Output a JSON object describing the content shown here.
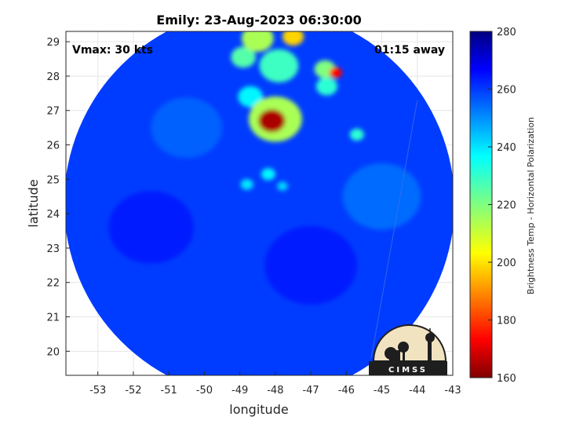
{
  "chart_data": {
    "type": "heatmap",
    "title": "Emily: 23-Aug-2023 06:30:00",
    "xlabel": "longitude",
    "ylabel": "latitude",
    "xlim": [
      -53.9,
      -43.0
    ],
    "ylim": [
      19.3,
      29.3
    ],
    "xticks": [
      -53,
      -52,
      -51,
      -50,
      -49,
      -48,
      -47,
      -46,
      -45,
      -44,
      -43
    ],
    "yticks": [
      20,
      21,
      22,
      23,
      24,
      25,
      26,
      27,
      28,
      29
    ],
    "grid": true,
    "annotations": {
      "vmax": "Vmax: 30 kts",
      "away": "01:15 away"
    },
    "colorbar": {
      "label": "Brightness Temp - Horizontal Polarization",
      "min": 160,
      "max": 280,
      "ticks": [
        160,
        180,
        200,
        220,
        240,
        260,
        280
      ],
      "colormap": "jet"
    },
    "swath": {
      "center_lon": -48.45,
      "center_lat": 24.3,
      "radius_deg": 5.5
    },
    "background_tb": 258,
    "features": [
      {
        "lon": -48.1,
        "lat": 26.7,
        "tb": 165,
        "r": 0.38
      },
      {
        "lon": -48.0,
        "lat": 26.75,
        "tb": 215,
        "r": 0.75
      },
      {
        "lon": -47.9,
        "lat": 28.3,
        "tb": 228,
        "r": 0.55
      },
      {
        "lon": -48.9,
        "lat": 28.55,
        "tb": 225,
        "r": 0.35
      },
      {
        "lon": -48.5,
        "lat": 29.1,
        "tb": 215,
        "r": 0.45
      },
      {
        "lon": -47.5,
        "lat": 29.15,
        "tb": 200,
        "r": 0.3
      },
      {
        "lon": -46.3,
        "lat": 28.1,
        "tb": 175,
        "r": 0.18
      },
      {
        "lon": -46.6,
        "lat": 28.2,
        "tb": 220,
        "r": 0.3
      },
      {
        "lon": -46.55,
        "lat": 27.7,
        "tb": 230,
        "r": 0.3
      },
      {
        "lon": -45.7,
        "lat": 26.3,
        "tb": 230,
        "r": 0.2
      },
      {
        "lon": -48.7,
        "lat": 27.4,
        "tb": 236,
        "r": 0.35
      },
      {
        "lon": -48.2,
        "lat": 25.15,
        "tb": 236,
        "r": 0.2
      },
      {
        "lon": -48.8,
        "lat": 24.85,
        "tb": 238,
        "r": 0.18
      },
      {
        "lon": -47.8,
        "lat": 24.8,
        "tb": 240,
        "r": 0.15
      },
      {
        "lon": -51.5,
        "lat": 23.6,
        "tb": 264,
        "r": 1.2
      },
      {
        "lon": -47.0,
        "lat": 22.5,
        "tb": 264,
        "r": 1.3
      },
      {
        "lon": -45.0,
        "lat": 24.5,
        "tb": 248,
        "r": 1.1
      },
      {
        "lon": -50.5,
        "lat": 26.5,
        "tb": 250,
        "r": 1.0
      }
    ]
  },
  "logo": {
    "text": "CIMSS"
  }
}
